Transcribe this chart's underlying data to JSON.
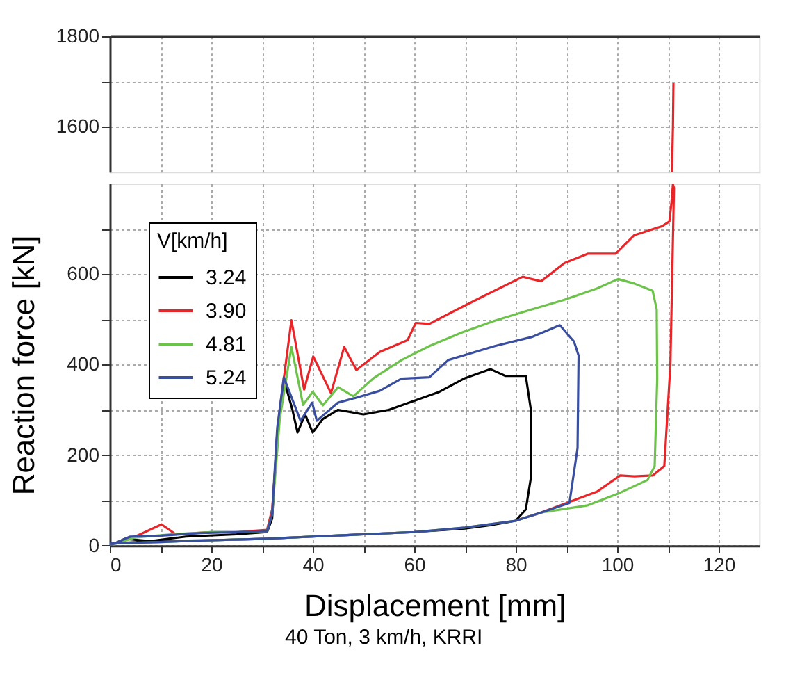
{
  "chart_data": [
    {
      "type": "line",
      "xlim": [
        0,
        128
      ],
      "xticks": [
        {
          "value": 0,
          "label": null
        },
        {
          "value": 10,
          "label": null
        },
        {
          "value": 20,
          "label": null
        },
        {
          "value": 30,
          "label": null
        },
        {
          "value": 40,
          "label": null
        },
        {
          "value": 50,
          "label": null
        },
        {
          "value": 60,
          "label": null
        },
        {
          "value": 70,
          "label": null
        },
        {
          "value": 80,
          "label": null
        },
        {
          "value": 90,
          "label": null
        },
        {
          "value": 100,
          "label": null
        },
        {
          "value": 110,
          "label": null
        },
        {
          "value": 120,
          "label": null
        }
      ],
      "ylim": [
        1500,
        1800
      ],
      "yticks": [
        1600,
        {
          "value": 1700,
          "label": null
        },
        1800
      ],
      "tick_labels": "y",
      "grid": true,
      "series": [
        {
          "color": "#e8262a",
          "x": [
            110.8,
            111.0,
            111.1
          ],
          "values": [
            1500,
            1600,
            1697
          ]
        }
      ]
    },
    {
      "type": "line",
      "xlim": [
        0,
        128
      ],
      "xticks": [
        0,
        {
          "value": 10,
          "label": null
        },
        20,
        {
          "value": 30,
          "label": null
        },
        40,
        {
          "value": 50,
          "label": null
        },
        60,
        {
          "value": 70,
          "label": null
        },
        80,
        {
          "value": 90,
          "label": null
        },
        100,
        {
          "value": 110,
          "label": null
        },
        120
      ],
      "ylim": [
        0,
        800
      ],
      "yticks": [
        0,
        {
          "value": 100,
          "label": null
        },
        200,
        {
          "value": 300,
          "label": null
        },
        400,
        {
          "value": 500,
          "label": null
        },
        600,
        {
          "value": 700,
          "label": null
        }
      ],
      "grid": true,
      "xlabel": "Displacement [mm]",
      "ylabel": "Reaction force [kN]",
      "legend": "top left",
      "legend_title": "V[km/h]",
      "annotations": [
        "40 Ton, 3 km/h, KRRI"
      ],
      "series": [
        {
          "name": "3.24",
          "color": "#000000",
          "x": [
            0,
            3,
            8,
            15,
            25,
            31,
            32,
            33,
            34.5,
            36,
            37,
            38.5,
            40,
            42,
            45,
            50,
            55,
            60,
            65,
            70,
            75,
            78,
            82,
            83,
            83,
            82,
            80,
            75,
            70,
            60,
            50,
            40,
            30,
            20,
            10,
            0
          ],
          "values": [
            0,
            15,
            10,
            20,
            25,
            30,
            60,
            250,
            360,
            300,
            250,
            290,
            250,
            280,
            300,
            290,
            300,
            320,
            340,
            370,
            390,
            375,
            375,
            300,
            150,
            80,
            55,
            45,
            38,
            30,
            25,
            20,
            15,
            12,
            10,
            5
          ]
        },
        {
          "name": "3.90",
          "color": "#e8262a",
          "x": [
            0,
            5,
            10.2,
            13,
            20,
            25,
            31,
            32,
            33.5,
            35.8,
            38.3,
            40.1,
            43.6,
            46.2,
            48.6,
            53.2,
            58.7,
            60.3,
            63,
            68.5,
            74,
            81.4,
            85,
            89.6,
            94.2,
            99.7,
            103.4,
            108.9,
            110.3,
            110.7,
            111,
            111.2,
            110.5,
            109.3,
            107,
            103.4,
            100.6,
            96,
            92.4,
            85,
            80
          ],
          "values": [
            0,
            20,
            47,
            25,
            30,
            30,
            35,
            80,
            300,
            498,
            345,
            418,
            337,
            439,
            388,
            428,
            454,
            492,
            490,
            522,
            553,
            594,
            584,
            624,
            645,
            645,
            686,
            706,
            716,
            757,
            798,
            790,
            400,
            176,
            155,
            153,
            155,
            119,
            104,
            73,
            55
          ]
        },
        {
          "name": "4.81",
          "color": "#6cc24a",
          "x": [
            0,
            5,
            12,
            20,
            28,
            31,
            32,
            33.5,
            35.8,
            38.1,
            40,
            42,
            45,
            48,
            52,
            57.5,
            63,
            69.4,
            75.9,
            83.2,
            89.6,
            96,
            100.2,
            103.4,
            107,
            107.8,
            107.9,
            107.4,
            106,
            100,
            94.2,
            85,
            80,
            70,
            60,
            50,
            40,
            30,
            20,
            10,
            0
          ],
          "values": [
            0,
            18,
            25,
            30,
            30,
            32,
            70,
            280,
            439,
            311,
            340,
            310,
            350,
            330,
            370,
            410,
            441,
            471,
            497,
            522,
            543,
            568,
            589,
            579,
            563,
            522,
            369,
            176,
            145,
            114,
            89,
            73,
            55,
            40,
            30,
            25,
            20,
            15,
            12,
            8,
            5
          ]
        },
        {
          "name": "5.24",
          "color": "#3a4ea0",
          "x": [
            0,
            4,
            10,
            18,
            26,
            31,
            32,
            33,
            34.3,
            37.6,
            39.9,
            40.8,
            45,
            48.6,
            53.2,
            57.5,
            63,
            66.7,
            75.9,
            83.2,
            88.7,
            91.5,
            92.4,
            92.2,
            90.6,
            85,
            80,
            70,
            60,
            50,
            40,
            30,
            20,
            10,
            0
          ],
          "values": [
            0,
            20,
            22,
            28,
            30,
            32,
            70,
            260,
            372,
            276,
            316,
            276,
            316,
            327,
            342,
            369,
            372,
            410,
            441,
            461,
            487,
            451,
            420,
            216,
            94,
            73,
            55,
            40,
            30,
            25,
            20,
            15,
            12,
            8,
            5
          ]
        }
      ]
    }
  ]
}
